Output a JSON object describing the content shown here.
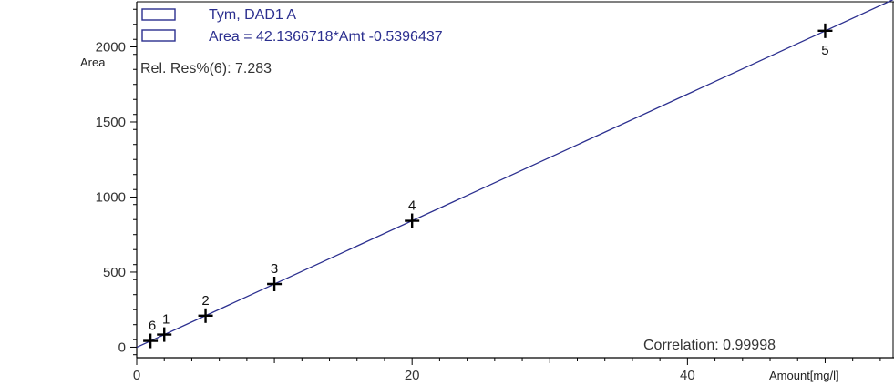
{
  "chart_data": {
    "type": "scatter",
    "legend": [
      {
        "label": "Tym, DAD1 A",
        "color": "#2b2f8f"
      },
      {
        "label": "Area = 42.1366718*Amt -0.5396437",
        "color": "#2b2f8f"
      }
    ],
    "rel_res": "Rel. Res%(6): 7.283",
    "correlation": "Correlation: 0.99998",
    "ylabel": "Area",
    "xlabel": "Amount[mg/l]",
    "xlim": [
      0,
      55
    ],
    "ylim": [
      -70,
      2300
    ],
    "x_ticks": [
      0,
      20,
      40
    ],
    "y_ticks": [
      0,
      500,
      1000,
      1500,
      2000
    ],
    "fit": {
      "slope": 42.1366718,
      "intercept": -0.5396437
    },
    "points": [
      {
        "label": "1",
        "x": 2,
        "y": 84
      },
      {
        "label": "2",
        "x": 5,
        "y": 210
      },
      {
        "label": "3",
        "x": 10,
        "y": 421
      },
      {
        "label": "4",
        "x": 20,
        "y": 842
      },
      {
        "label": "5",
        "x": 50,
        "y": 2107
      },
      {
        "label": "6",
        "x": 1,
        "y": 42
      }
    ],
    "line_color": "#2b2f8f",
    "marker_color": "#000000"
  }
}
